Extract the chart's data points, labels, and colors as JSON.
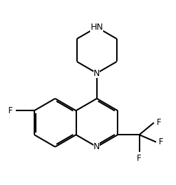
{
  "bg_color": "#ffffff",
  "line_color": "#000000",
  "lw": 1.5,
  "fs": 8.5,
  "figsize": [
    2.56,
    2.68
  ],
  "dpi": 100,
  "xlim": [
    -0.5,
    5.5
  ],
  "ylim": [
    -1.0,
    6.5
  ]
}
